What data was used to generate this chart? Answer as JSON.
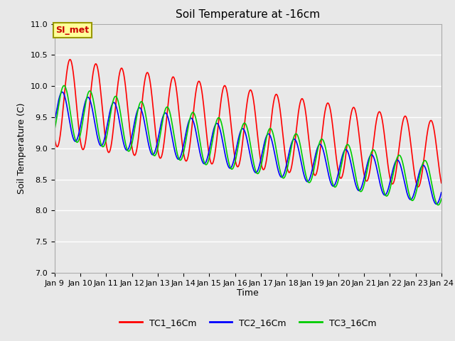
{
  "title": "Soil Temperature at -16cm",
  "xlabel": "Time",
  "ylabel": "Soil Temperature (C)",
  "ylim": [
    7.0,
    11.0
  ],
  "xlim_start": 9,
  "xlim_end": 24,
  "yticks": [
    7.0,
    7.5,
    8.0,
    8.5,
    9.0,
    9.5,
    10.0,
    10.5,
    11.0
  ],
  "xtick_labels": [
    "Jan 9",
    "Jan 10",
    "Jan 11",
    "Jan 12",
    "Jan 13",
    "Jan 14",
    "Jan 15",
    "Jan 16",
    "Jan 17",
    "Jan 18",
    "Jan 19",
    "Jan 20",
    "Jan 21",
    "Jan 22",
    "Jan 23",
    "Jan 24"
  ],
  "colors": {
    "TC1": "#ff0000",
    "TC2": "#0000ff",
    "TC3": "#00cc00"
  },
  "legend_labels": [
    "TC1_16Cm",
    "TC2_16Cm",
    "TC3_16Cm"
  ],
  "annotation_text": "SI_met",
  "annotation_color": "#cc0000",
  "annotation_bg": "#ffff99",
  "annotation_border": "#999900",
  "bg_color": "#e8e8e8",
  "plot_bg_color": "#e8e8e8",
  "grid_color": "#ffffff",
  "title_fontsize": 11,
  "axis_fontsize": 9,
  "tick_fontsize": 8,
  "legend_fontsize": 9,
  "linewidth": 1.2
}
